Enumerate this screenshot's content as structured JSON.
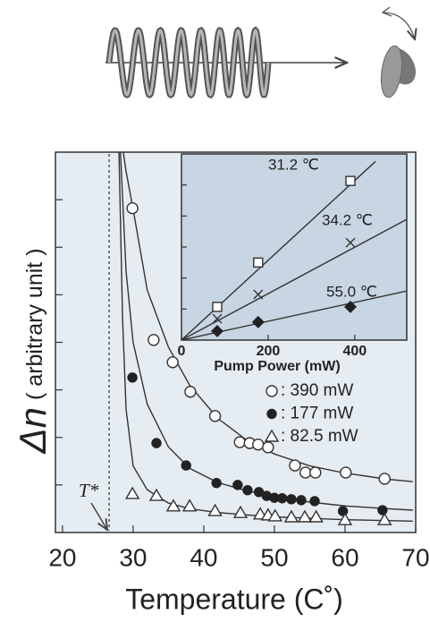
{
  "chart_data": [
    {
      "type": "scatter",
      "x_label": "Temperature (C˚)",
      "y_label": "Δn",
      "y_label_unit": "( arbitrary unit )",
      "xlim": [
        19,
        70
      ],
      "xticks": [
        20,
        30,
        40,
        50,
        60,
        70
      ],
      "ylim": [
        0,
        8
      ],
      "yticks": [
        1,
        2,
        3,
        4,
        5,
        6,
        7
      ],
      "background": "#e6edf2",
      "annotations": [
        {
          "text": "T*",
          "x": 26.6
        }
      ],
      "series": [
        {
          "name": ": 390  mW",
          "marker": "circle-open",
          "color": "#333",
          "x": [
            29.9,
            32.9,
            35.6,
            38.1,
            41.6,
            45.1,
            46.5,
            47.7,
            49.1,
            52.9,
            54.4,
            55.8,
            60.1,
            65.6
          ],
          "values": [
            6.82,
            4.05,
            3.58,
            2.96,
            2.45,
            1.9,
            1.88,
            1.85,
            1.79,
            1.41,
            1.26,
            1.26,
            1.26,
            1.13
          ]
        },
        {
          "name": ": 177  mW",
          "marker": "circle-filled",
          "color": "#222",
          "x": [
            29.9,
            33.3,
            37.5,
            41.8,
            44.8,
            46.2,
            47.8,
            48.9,
            50.0,
            51.1,
            52.4,
            53.8,
            55.7,
            59.7,
            65.3
          ],
          "values": [
            3.26,
            1.88,
            1.41,
            1.04,
            1.0,
            0.89,
            0.85,
            0.77,
            0.73,
            0.72,
            0.7,
            0.68,
            0.66,
            0.45,
            0.47
          ]
        },
        {
          "name": ": 82.5 mW",
          "marker": "triangle-open",
          "color": "#333",
          "x": [
            29.9,
            33.3,
            35.7,
            38.0,
            41.6,
            45.2,
            48.0,
            49.1,
            50.1,
            52.4,
            54.3,
            55.9,
            60.0,
            65.6
          ],
          "values": [
            0.81,
            0.77,
            0.55,
            0.55,
            0.45,
            0.41,
            0.38,
            0.36,
            0.34,
            0.32,
            0.32,
            0.32,
            0.26,
            0.26
          ]
        }
      ],
      "fits": [
        {
          "x": [
            28.6,
            29,
            30,
            32,
            35,
            38,
            42,
            46,
            50,
            55,
            60,
            66,
            69.6
          ],
          "values": [
            8.0,
            7.6,
            6.8,
            5.1,
            3.9,
            3.1,
            2.4,
            1.95,
            1.65,
            1.4,
            1.25,
            1.12,
            1.07
          ]
        },
        {
          "x": [
            28.2,
            29,
            30,
            32,
            35,
            38,
            42,
            46,
            50,
            55,
            60,
            66,
            69.6
          ],
          "values": [
            8.0,
            5.5,
            4.0,
            2.7,
            1.8,
            1.35,
            1.05,
            0.88,
            0.76,
            0.64,
            0.56,
            0.5,
            0.47
          ]
        },
        {
          "x": [
            28.0,
            28.5,
            29,
            30,
            32,
            35,
            38,
            42,
            46,
            50,
            55,
            60,
            66,
            69.6
          ],
          "values": [
            8.0,
            4.5,
            2.6,
            1.4,
            0.9,
            0.62,
            0.5,
            0.42,
            0.37,
            0.33,
            0.3,
            0.27,
            0.25,
            0.24
          ]
        }
      ]
    },
    {
      "type": "scatter",
      "x_label": "Pump Power  (mW)",
      "xlim": [
        0,
        520
      ],
      "xticks": [
        0,
        200,
        400
      ],
      "ylim": [
        0,
        6
      ],
      "yticks": [
        1,
        2,
        3,
        4,
        5
      ],
      "background": "#c8d5e2",
      "series": [
        {
          "name": "31.2 ℃",
          "marker": "square-open",
          "color": "#333",
          "x": [
            82.5,
            177,
            390
          ],
          "values": [
            1.07,
            2.5,
            5.13
          ]
        },
        {
          "name": "34.2 ℃",
          "marker": "cross",
          "color": "#333",
          "x": [
            82.5,
            177,
            390
          ],
          "values": [
            0.69,
            1.47,
            3.14
          ]
        },
        {
          "name": "55.0 ℃",
          "marker": "diamond-filled",
          "color": "#222",
          "x": [
            82.5,
            177,
            390
          ],
          "values": [
            0.29,
            0.58,
            1.07
          ]
        }
      ],
      "fits": [
        {
          "x": [
            0,
            448
          ],
          "values": [
            0,
            5.76
          ]
        },
        {
          "x": [
            0,
            520
          ],
          "values": [
            0,
            3.89
          ]
        },
        {
          "x": [
            0,
            520
          ],
          "values": [
            0,
            1.58
          ]
        }
      ]
    }
  ]
}
